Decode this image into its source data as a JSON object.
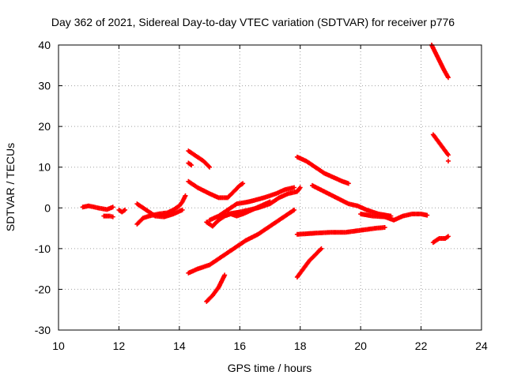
{
  "chart_data": {
    "type": "scatter",
    "title": "Day 362 of 2021, Sidereal Day-to-day VTEC variation (SDTVAR) for receiver p776",
    "xlabel": "GPS time / hours",
    "ylabel": "SDTVAR / TECUs",
    "xlim": [
      10,
      24
    ],
    "ylim": [
      -30,
      40
    ],
    "xticks": [
      10,
      12,
      14,
      16,
      18,
      20,
      22,
      24
    ],
    "yticks": [
      -30,
      -20,
      -10,
      0,
      10,
      20,
      30,
      40
    ],
    "grid": true,
    "marker": "+",
    "color": "#ff0000",
    "series": [
      {
        "x": [
          10.8,
          11.0,
          11.3,
          11.6,
          11.8
        ],
        "y": [
          0.2,
          0.5,
          0.0,
          -0.4,
          0.2
        ]
      },
      {
        "x": [
          11.5,
          11.7,
          11.8
        ],
        "y": [
          -2.0,
          -2.0,
          -2.2
        ]
      },
      {
        "x": [
          12.0,
          12.1,
          12.2
        ],
        "y": [
          -0.5,
          -1.0,
          -0.5
        ]
      },
      {
        "x": [
          12.6,
          12.8,
          13.0,
          13.3,
          13.6,
          13.8,
          14.0,
          14.1,
          14.2
        ],
        "y": [
          -4.0,
          -2.5,
          -2.0,
          -1.5,
          -1.2,
          -0.5,
          0.5,
          1.5,
          3.0
        ]
      },
      {
        "x": [
          12.6,
          12.9,
          13.2,
          13.5,
          13.8,
          14.1
        ],
        "y": [
          1.0,
          -0.5,
          -2.0,
          -2.2,
          -1.5,
          -0.5
        ]
      },
      {
        "x": [
          14.3,
          14.5,
          14.8,
          15.0
        ],
        "y": [
          14.0,
          13.0,
          11.5,
          10.0
        ]
      },
      {
        "x": [
          14.3,
          14.4
        ],
        "y": [
          11.0,
          10.5
        ]
      },
      {
        "x": [
          14.3,
          14.6,
          15.0,
          15.3,
          15.6,
          15.8,
          16.0,
          16.1
        ],
        "y": [
          6.5,
          5.0,
          3.5,
          2.5,
          2.5,
          4.0,
          5.5,
          6.0
        ]
      },
      {
        "x": [
          14.9,
          15.1,
          15.3,
          15.5
        ],
        "y": [
          -3.5,
          -4.5,
          -3.0,
          -1.5
        ]
      },
      {
        "x": [
          15.0,
          15.3,
          15.6,
          15.9,
          16.3,
          16.8,
          17.2,
          17.5,
          17.8
        ],
        "y": [
          -3.0,
          -2.0,
          -0.5,
          1.0,
          1.5,
          2.5,
          3.5,
          4.5,
          5.0
        ]
      },
      {
        "x": [
          15.6,
          16.0,
          16.3,
          16.6,
          17.0,
          17.3,
          17.6,
          17.9,
          18.0
        ],
        "y": [
          -1.5,
          -1.0,
          -0.5,
          0.0,
          1.0,
          2.5,
          3.5,
          4.0,
          5.0
        ]
      },
      {
        "x": [
          15.3,
          15.5,
          15.7,
          15.9,
          16.1,
          16.4,
          16.7,
          17.0
        ],
        "y": [
          -3.0,
          -2.0,
          -1.5,
          -2.0,
          -1.5,
          -0.5,
          0.5,
          1.5
        ]
      },
      {
        "x": [
          14.3,
          14.6,
          15.0,
          15.4,
          15.8,
          16.2,
          16.6,
          17.0,
          17.4,
          17.8
        ],
        "y": [
          -16.0,
          -15.0,
          -14.0,
          -12.0,
          -10.0,
          -8.0,
          -6.5,
          -4.5,
          -2.5,
          -0.5
        ]
      },
      {
        "x": [
          14.9,
          15.1,
          15.3,
          15.5
        ],
        "y": [
          -23.0,
          -21.5,
          -19.5,
          -16.5
        ]
      },
      {
        "x": [
          17.9,
          18.2,
          18.5,
          18.8,
          19.1,
          19.4,
          19.6
        ],
        "y": [
          12.5,
          11.5,
          10.0,
          8.5,
          7.5,
          6.5,
          6.0
        ]
      },
      {
        "x": [
          17.9,
          18.1,
          18.3,
          18.5,
          18.7
        ],
        "y": [
          -17.0,
          -15.0,
          -13.0,
          -11.5,
          -10.0
        ]
      },
      {
        "x": [
          17.9,
          18.5,
          19.0,
          19.5,
          20.0,
          20.5,
          20.8
        ],
        "y": [
          -6.5,
          -6.2,
          -6.0,
          -6.0,
          -5.5,
          -5.0,
          -4.8
        ]
      },
      {
        "x": [
          18.4,
          18.8,
          19.2,
          19.6,
          19.9,
          20.2,
          20.6,
          21.0
        ],
        "y": [
          5.5,
          4.0,
          2.5,
          1.0,
          0.5,
          -0.5,
          -1.5,
          -2.0
        ]
      },
      {
        "x": [
          20.0,
          20.4,
          20.8,
          21.1,
          21.4,
          21.7,
          22.0,
          22.2
        ],
        "y": [
          -1.5,
          -2.0,
          -2.2,
          -3.0,
          -2.0,
          -1.5,
          -1.5,
          -1.8
        ]
      },
      {
        "x": [
          22.35,
          22.55,
          22.75,
          22.9
        ],
        "y": [
          40.0,
          37.0,
          34.0,
          32.0
        ]
      },
      {
        "x": [
          22.4,
          22.6,
          22.8,
          22.9
        ],
        "y": [
          18.0,
          16.0,
          14.0,
          13.0
        ]
      },
      {
        "x": [
          22.9
        ],
        "y": [
          11.5
        ]
      },
      {
        "x": [
          22.4,
          22.6,
          22.8,
          22.9
        ],
        "y": [
          -8.5,
          -7.5,
          -7.5,
          -7.0
        ]
      }
    ]
  }
}
